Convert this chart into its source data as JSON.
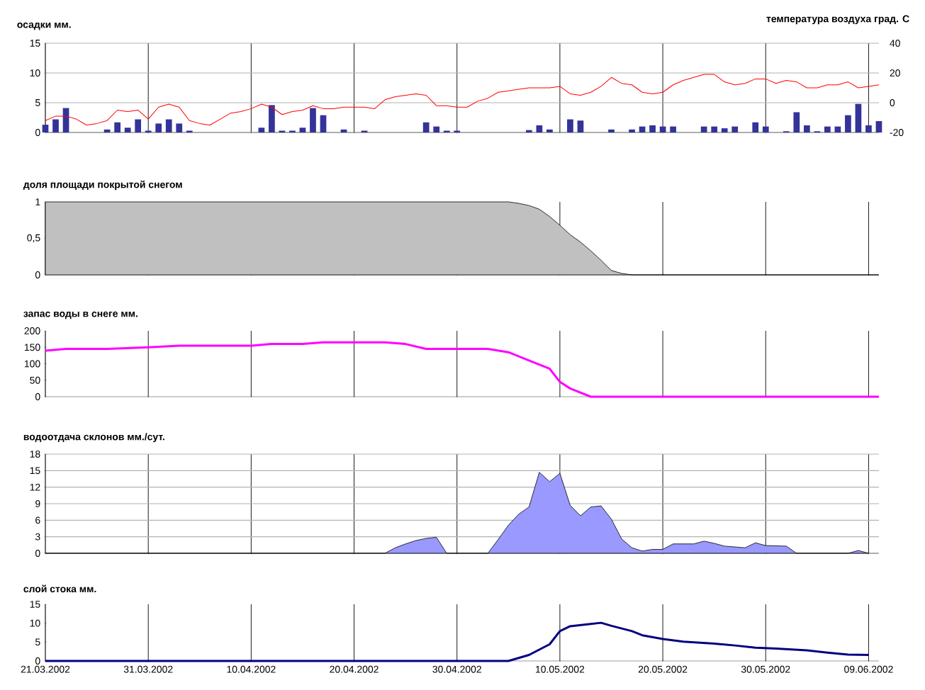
{
  "chart_data": [
    {
      "type": "bar",
      "ylabel": "осадки мм.",
      "y2label": "температура воздуха град. С",
      "xlim": [
        "2002-03-21",
        "2002-06-10"
      ],
      "xticks": [
        {
          "value": "2002-03-21",
          "label": null
        },
        {
          "value": "2002-03-31",
          "label": null
        },
        {
          "value": "2002-04-10",
          "label": null
        },
        {
          "value": "2002-04-20",
          "label": null
        },
        {
          "value": "2002-04-30",
          "label": null
        },
        {
          "value": "2002-05-10",
          "label": null
        },
        {
          "value": "2002-05-20",
          "label": null
        },
        {
          "value": "2002-05-30",
          "label": null
        },
        {
          "value": "2002-06-09",
          "label": null
        }
      ],
      "ylim": [
        0,
        15
      ],
      "yticks": [
        0,
        5,
        10,
        15
      ],
      "y2lim": [
        -20,
        40
      ],
      "y2ticks": [
        -20,
        0,
        20,
        40
      ],
      "grid": true,
      "tick_labels": "y",
      "series": [
        {
          "type": "bar",
          "color": "#333399",
          "x": [
            "2002-03-21",
            "2002-03-22",
            "2002-03-23",
            "2002-03-27",
            "2002-03-28",
            "2002-03-29",
            "2002-03-30",
            "2002-03-31",
            "2002-04-01",
            "2002-04-02",
            "2002-04-03",
            "2002-04-04",
            "2002-04-11",
            "2002-04-12",
            "2002-04-13",
            "2002-04-14",
            "2002-04-15",
            "2002-04-16",
            "2002-04-17",
            "2002-04-19",
            "2002-04-21",
            "2002-04-27",
            "2002-04-28",
            "2002-04-29",
            "2002-04-30",
            "2002-05-07",
            "2002-05-08",
            "2002-05-09",
            "2002-05-11",
            "2002-05-12",
            "2002-05-15",
            "2002-05-17",
            "2002-05-18",
            "2002-05-19",
            "2002-05-20",
            "2002-05-21",
            "2002-05-24",
            "2002-05-25",
            "2002-05-26",
            "2002-05-27",
            "2002-05-29",
            "2002-05-30",
            "2002-06-01",
            "2002-06-02",
            "2002-06-03",
            "2002-06-04",
            "2002-06-05",
            "2002-06-06",
            "2002-06-07",
            "2002-06-08",
            "2002-06-09",
            "2002-06-10"
          ],
          "values": [
            1.3,
            2.2,
            4.1,
            0.5,
            1.7,
            0.8,
            2.2,
            0.3,
            1.5,
            2.2,
            1.5,
            0.3,
            0.8,
            4.6,
            0.3,
            0.3,
            0.8,
            4.1,
            2.9,
            0.5,
            0.3,
            1.7,
            1.0,
            0.3,
            0.3,
            0.4,
            1.2,
            0.5,
            2.2,
            2.0,
            0.5,
            0.5,
            1.0,
            1.2,
            1.0,
            1.0,
            1.0,
            1.0,
            0.7,
            1.0,
            1.7,
            1.0,
            0.2,
            3.4,
            1.2,
            0.2,
            1.0,
            1.0,
            2.9,
            4.8,
            1.2,
            1.9
          ]
        },
        {
          "type": "line",
          "axis": "y2",
          "color": "#ff0000",
          "x": [
            "2002-03-21",
            "2002-03-22",
            "2002-03-23",
            "2002-03-24",
            "2002-03-25",
            "2002-03-26",
            "2002-03-27",
            "2002-03-28",
            "2002-03-29",
            "2002-03-30",
            "2002-03-31",
            "2002-04-01",
            "2002-04-02",
            "2002-04-03",
            "2002-04-04",
            "2002-04-05",
            "2002-04-06",
            "2002-04-07",
            "2002-04-08",
            "2002-04-09",
            "2002-04-10",
            "2002-04-11",
            "2002-04-12",
            "2002-04-13",
            "2002-04-14",
            "2002-04-15",
            "2002-04-16",
            "2002-04-17",
            "2002-04-18",
            "2002-04-19",
            "2002-04-20",
            "2002-04-21",
            "2002-04-22",
            "2002-04-23",
            "2002-04-24",
            "2002-04-25",
            "2002-04-26",
            "2002-04-27",
            "2002-04-28",
            "2002-04-29",
            "2002-04-30",
            "2002-05-01",
            "2002-05-02",
            "2002-05-03",
            "2002-05-04",
            "2002-05-05",
            "2002-05-06",
            "2002-05-07",
            "2002-05-08",
            "2002-05-09",
            "2002-05-10",
            "2002-05-11",
            "2002-05-12",
            "2002-05-13",
            "2002-05-14",
            "2002-05-15",
            "2002-05-16",
            "2002-05-17",
            "2002-05-18",
            "2002-05-19",
            "2002-05-20",
            "2002-05-21",
            "2002-05-22",
            "2002-05-23",
            "2002-05-24",
            "2002-05-25",
            "2002-05-26",
            "2002-05-27",
            "2002-05-28",
            "2002-05-29",
            "2002-05-30",
            "2002-05-31",
            "2002-06-01",
            "2002-06-02",
            "2002-06-03",
            "2002-06-04",
            "2002-06-05",
            "2002-06-06",
            "2002-06-07",
            "2002-06-08",
            "2002-06-09",
            "2002-06-10"
          ],
          "values": [
            -12,
            -9,
            -9,
            -11,
            -15,
            -14,
            -12,
            -5,
            -6,
            -5,
            -11,
            -3,
            -1,
            -3,
            -12,
            -14,
            -15,
            -11,
            -7,
            -6,
            -4,
            -1,
            -3,
            -8,
            -6,
            -5,
            -2,
            -4,
            -4,
            -3,
            -3,
            -3,
            -4,
            2,
            4,
            5,
            6,
            5,
            -2,
            -2,
            -3,
            -3,
            1,
            3,
            7,
            8,
            9,
            10,
            10,
            10,
            11,
            6,
            5,
            7,
            11,
            17,
            13,
            12,
            7,
            6,
            7,
            12,
            15,
            17,
            19,
            19,
            14,
            12,
            13,
            16,
            16,
            13,
            15,
            14,
            10,
            10,
            12,
            12,
            14,
            10,
            11,
            12
          ]
        }
      ]
    },
    {
      "type": "area",
      "title": "доля площади покрытой снегом",
      "xlim": [
        "2002-03-21",
        "2002-06-10"
      ],
      "xticks": [
        {
          "value": "2002-03-21",
          "label": null
        },
        {
          "value": "2002-03-31",
          "label": null
        },
        {
          "value": "2002-04-10",
          "label": null
        },
        {
          "value": "2002-04-20",
          "label": null
        },
        {
          "value": "2002-04-30",
          "label": null
        },
        {
          "value": "2002-05-10",
          "label": null
        },
        {
          "value": "2002-05-20",
          "label": null
        },
        {
          "value": "2002-05-30",
          "label": null
        },
        {
          "value": "2002-06-09",
          "label": null
        }
      ],
      "ylim": [
        0,
        1
      ],
      "yticks": [
        0,
        {
          "value": 0.5,
          "label": "0,5"
        },
        1
      ],
      "grid": "x",
      "tick_labels": "y",
      "color": "#c0c0c0",
      "x": [
        "2002-03-21",
        "2002-05-05",
        "2002-05-06",
        "2002-05-07",
        "2002-05-08",
        "2002-05-09",
        "2002-05-10",
        "2002-05-11",
        "2002-05-12",
        "2002-05-13",
        "2002-05-14",
        "2002-05-15",
        "2002-05-16",
        "2002-05-17",
        "2002-06-10"
      ],
      "values": [
        1,
        1,
        0.98,
        0.95,
        0.9,
        0.8,
        0.68,
        0.55,
        0.45,
        0.33,
        0.2,
        0.06,
        0.02,
        0,
        0
      ]
    },
    {
      "type": "line",
      "title": "запас воды в снеге мм.",
      "xlim": [
        "2002-03-21",
        "2002-06-10"
      ],
      "xticks": [
        {
          "value": "2002-03-21",
          "label": null
        },
        {
          "value": "2002-03-31",
          "label": null
        },
        {
          "value": "2002-04-10",
          "label": null
        },
        {
          "value": "2002-04-20",
          "label": null
        },
        {
          "value": "2002-04-30",
          "label": null
        },
        {
          "value": "2002-05-10",
          "label": null
        },
        {
          "value": "2002-05-20",
          "label": null
        },
        {
          "value": "2002-05-30",
          "label": null
        },
        {
          "value": "2002-06-09",
          "label": null
        }
      ],
      "ylim": [
        0,
        200
      ],
      "yticks": [
        0,
        50,
        100,
        150,
        200
      ],
      "grid": "x",
      "tick_labels": "y",
      "color": "#ff00ff",
      "x": [
        "2002-03-21",
        "2002-03-23",
        "2002-03-27",
        "2002-03-31",
        "2002-04-03",
        "2002-04-10",
        "2002-04-12",
        "2002-04-15",
        "2002-04-17",
        "2002-04-23",
        "2002-04-25",
        "2002-04-27",
        "2002-05-03",
        "2002-05-05",
        "2002-05-07",
        "2002-05-09",
        "2002-05-10",
        "2002-05-11",
        "2002-05-13",
        "2002-06-10"
      ],
      "values": [
        140,
        145,
        145,
        150,
        155,
        155,
        160,
        160,
        165,
        165,
        160,
        145,
        145,
        135,
        110,
        85,
        45,
        25,
        0,
        0
      ]
    },
    {
      "type": "area",
      "title": "водоотдача склонов мм./сут.",
      "xlim": [
        "2002-03-21",
        "2002-06-10"
      ],
      "xticks": [
        {
          "value": "2002-03-21",
          "label": null
        },
        {
          "value": "2002-03-31",
          "label": null
        },
        {
          "value": "2002-04-10",
          "label": null
        },
        {
          "value": "2002-04-20",
          "label": null
        },
        {
          "value": "2002-04-30",
          "label": null
        },
        {
          "value": "2002-05-10",
          "label": null
        },
        {
          "value": "2002-05-20",
          "label": null
        },
        {
          "value": "2002-05-30",
          "label": null
        },
        {
          "value": "2002-06-09",
          "label": null
        }
      ],
      "ylim": [
        0,
        18
      ],
      "yticks": [
        0,
        3,
        6,
        9,
        12,
        15,
        18
      ],
      "grid": true,
      "tick_labels": "y",
      "color": "#9999ff",
      "x": [
        "2002-03-21",
        "2002-04-23",
        "2002-04-24",
        "2002-04-25",
        "2002-04-26",
        "2002-04-27",
        "2002-04-28",
        "2002-04-29",
        "2002-05-03",
        "2002-05-04",
        "2002-05-05",
        "2002-05-06",
        "2002-05-07",
        "2002-05-08",
        "2002-05-09",
        "2002-05-10",
        "2002-05-11",
        "2002-05-12",
        "2002-05-13",
        "2002-05-14",
        "2002-05-15",
        "2002-05-16",
        "2002-05-17",
        "2002-05-18",
        "2002-05-19",
        "2002-05-20",
        "2002-05-21",
        "2002-05-23",
        "2002-05-24",
        "2002-05-25",
        "2002-05-26",
        "2002-05-28",
        "2002-05-29",
        "2002-05-30",
        "2002-06-01",
        "2002-06-02",
        "2002-06-07",
        "2002-06-08",
        "2002-06-09"
      ],
      "values": [
        0,
        0,
        1.0,
        1.7,
        2.3,
        2.7,
        2.9,
        0,
        0,
        2.5,
        5.1,
        7.1,
        8.4,
        14.7,
        13,
        14.5,
        8.7,
        6.8,
        8.4,
        8.6,
        6.2,
        2.6,
        1.0,
        0.4,
        0.7,
        0.7,
        1.7,
        1.7,
        2.2,
        1.8,
        1.3,
        1.0,
        1.9,
        1.4,
        1.3,
        0,
        0,
        0.5,
        0
      ]
    },
    {
      "type": "line",
      "title": "слой стока мм.",
      "xlim": [
        "2002-03-21",
        "2002-06-10"
      ],
      "xticks": [
        {
          "value": "2002-03-21",
          "label": "21.03.2002"
        },
        {
          "value": "2002-03-31",
          "label": "31.03.2002"
        },
        {
          "value": "2002-04-10",
          "label": "10.04.2002"
        },
        {
          "value": "2002-04-20",
          "label": "20.04.2002"
        },
        {
          "value": "2002-04-30",
          "label": "30.04.2002"
        },
        {
          "value": "2002-05-10",
          "label": "10.05.2002"
        },
        {
          "value": "2002-05-20",
          "label": "20.05.2002"
        },
        {
          "value": "2002-05-30",
          "label": "30.05.2002"
        },
        {
          "value": "2002-06-09",
          "label": "09.06.2002"
        }
      ],
      "ylim": [
        0,
        15
      ],
      "yticks": [
        0,
        5,
        10,
        15
      ],
      "grid": "x",
      "color": "#000080",
      "x": [
        "2002-03-21",
        "2002-05-05",
        "2002-05-07",
        "2002-05-09",
        "2002-05-10",
        "2002-05-11",
        "2002-05-13",
        "2002-05-14",
        "2002-05-15",
        "2002-05-17",
        "2002-05-18",
        "2002-05-20",
        "2002-05-22",
        "2002-05-25",
        "2002-05-27",
        "2002-05-29",
        "2002-05-31",
        "2002-06-03",
        "2002-06-05",
        "2002-06-07",
        "2002-06-09"
      ],
      "values": [
        0,
        0,
        1.6,
        4.4,
        7.9,
        9.2,
        9.8,
        10.1,
        9.3,
        7.9,
        6.8,
        5.8,
        5.1,
        4.6,
        4.1,
        3.5,
        3.3,
        2.8,
        2.2,
        1.7,
        1.6
      ]
    }
  ]
}
